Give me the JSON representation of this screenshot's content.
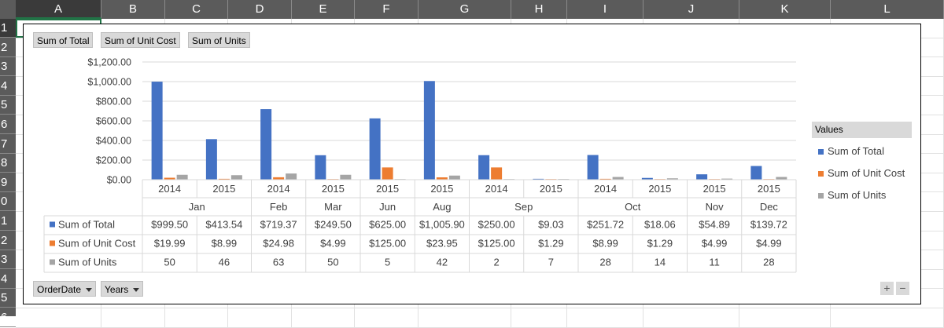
{
  "sheet": {
    "columns": [
      "A",
      "B",
      "C",
      "D",
      "E",
      "F",
      "G",
      "H",
      "I",
      "J",
      "K",
      "L"
    ],
    "rows": [
      "1",
      "2",
      "3",
      "4",
      "5",
      "6",
      "7",
      "8",
      "9",
      "0",
      "1",
      "2",
      "3",
      "4",
      "5",
      "6"
    ],
    "selected_column": "A",
    "selected_row": "1"
  },
  "field_buttons": {
    "values": [
      "Sum of Total",
      "Sum of Unit Cost",
      "Sum of Units"
    ],
    "axis": [
      "OrderDate",
      "Years"
    ]
  },
  "legend": {
    "title": "Values"
  },
  "zoom": {
    "plus": "+",
    "minus": "−"
  },
  "chart_data": {
    "type": "bar",
    "y_ticks": [
      "$0.00",
      "$200.00",
      "$400.00",
      "$600.00",
      "$800.00",
      "$1,000.00",
      "$1,200.00"
    ],
    "ylim": [
      0,
      1200
    ],
    "grid": true,
    "legend_position": "right",
    "categories": [
      {
        "year": "2014",
        "month": "Jan"
      },
      {
        "year": "2015",
        "month": "Jan"
      },
      {
        "year": "2014",
        "month": "Feb"
      },
      {
        "year": "2015",
        "month": "Mar"
      },
      {
        "year": "2015",
        "month": "Jun"
      },
      {
        "year": "2015",
        "month": "Aug"
      },
      {
        "year": "2014",
        "month": "Sep"
      },
      {
        "year": "2015",
        "month": "Sep"
      },
      {
        "year": "2014",
        "month": "Oct"
      },
      {
        "year": "2015",
        "month": "Oct"
      },
      {
        "year": "2015",
        "month": "Nov"
      },
      {
        "year": "2015",
        "month": "Dec"
      }
    ],
    "month_groups": [
      {
        "label": "Jan",
        "span": 2
      },
      {
        "label": "Feb",
        "span": 1
      },
      {
        "label": "Mar",
        "span": 1
      },
      {
        "label": "Jun",
        "span": 1
      },
      {
        "label": "Aug",
        "span": 1
      },
      {
        "label": "Sep",
        "span": 2
      },
      {
        "label": "Oct",
        "span": 2
      },
      {
        "label": "Nov",
        "span": 1
      },
      {
        "label": "Dec",
        "span": 1
      }
    ],
    "series": [
      {
        "name": "Sum of Total",
        "color": "#4472c4",
        "values": [
          999.5,
          413.54,
          719.37,
          249.5,
          625.0,
          1005.9,
          250.0,
          9.03,
          251.72,
          18.06,
          54.89,
          139.72
        ],
        "labels": [
          "$999.50",
          "$413.54",
          "$719.37",
          "$249.50",
          "$625.00",
          "$1,005.90",
          "$250.00",
          "$9.03",
          "$251.72",
          "$18.06",
          "$54.89",
          "$139.72"
        ]
      },
      {
        "name": "Sum of Unit Cost",
        "color": "#ed7d31",
        "values": [
          19.99,
          8.99,
          24.98,
          4.99,
          125.0,
          23.95,
          125.0,
          1.29,
          8.99,
          1.29,
          4.99,
          4.99
        ],
        "labels": [
          "$19.99",
          "$8.99",
          "$24.98",
          "$4.99",
          "$125.00",
          "$23.95",
          "$125.00",
          "$1.29",
          "$8.99",
          "$1.29",
          "$4.99",
          "$4.99"
        ]
      },
      {
        "name": "Sum of Units",
        "color": "#a5a5a5",
        "values": [
          50,
          46,
          63,
          50,
          5,
          42,
          2,
          7,
          28,
          14,
          11,
          28
        ],
        "labels": [
          "50",
          "46",
          "63",
          "50",
          "5",
          "42",
          "2",
          "7",
          "28",
          "14",
          "11",
          "28"
        ]
      }
    ]
  }
}
